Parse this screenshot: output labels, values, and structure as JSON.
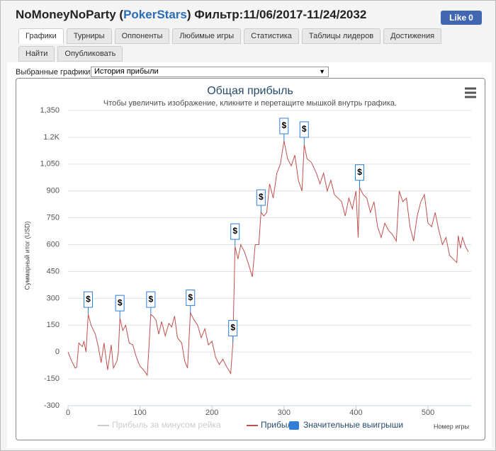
{
  "header": {
    "title_parts": [
      "NoMoneyNoParty (",
      "PokerStars",
      ") Фильтр:11/06/2017-11/24/2032"
    ],
    "like_button": {
      "label": "Like",
      "count": 0
    }
  },
  "tabs": [
    {
      "label": "Графики",
      "active": true
    },
    {
      "label": "Турниры"
    },
    {
      "label": "Оппоненты"
    },
    {
      "label": "Любимые игры"
    },
    {
      "label": "Статистика"
    },
    {
      "label": "Таблицы лидеров"
    },
    {
      "label": "Достижения"
    },
    {
      "label": "Найти"
    },
    {
      "label": "Опубликовать"
    }
  ],
  "chart_selector": {
    "label": "Выбранные графики:",
    "value": "История прибыли"
  },
  "chart_data": {
    "type": "line",
    "title": "Общая прибыль",
    "subtitle": "Чтобы увеличить изображение, кликните и перетащите мышкой внутрь графика.",
    "x_label": "Номер игры",
    "y_label": "Суммарный итог (USD)",
    "xlim": [
      0,
      560
    ],
    "xticks": [
      0,
      100,
      200,
      300,
      400,
      500
    ],
    "ylim": [
      -300,
      1350
    ],
    "yticks": [
      -300,
      -150,
      0,
      150,
      300,
      450,
      600,
      750,
      900,
      {
        "value": 1050,
        "label": "1,050"
      },
      {
        "value": 1200,
        "label": "1.2K"
      },
      {
        "value": 1350,
        "label": "1,350"
      }
    ],
    "grid": true,
    "series": [
      {
        "name": "Прибыль за минусом рейка",
        "color": "#cccccc",
        "visible": false
      },
      {
        "name": "Прибыль",
        "color": "#c0504d",
        "x": [
          0,
          5,
          10,
          12,
          15,
          20,
          22,
          25,
          28,
          32,
          38,
          42,
          46,
          50,
          55,
          60,
          63,
          68,
          70,
          72,
          76,
          80,
          85,
          90,
          95,
          100,
          105,
          110,
          112,
          115,
          118,
          122,
          126,
          130,
          135,
          140,
          144,
          148,
          152,
          158,
          162,
          166,
          170,
          175,
          180,
          185,
          190,
          195,
          200,
          205,
          210,
          215,
          220,
          226,
          229,
          232,
          236,
          240,
          245,
          250,
          256,
          260,
          265,
          268,
          272,
          276,
          280,
          285,
          290,
          295,
          300,
          305,
          310,
          315,
          320,
          325,
          328,
          332,
          338,
          345,
          350,
          355,
          360,
          365,
          370,
          375,
          380,
          385,
          390,
          395,
          400,
          403,
          405,
          410,
          415,
          420,
          425,
          430,
          435,
          440,
          445,
          450,
          456,
          460,
          465,
          470,
          475,
          480,
          485,
          490,
          495,
          500,
          505,
          510,
          515,
          520,
          525,
          530,
          535,
          540,
          542,
          545,
          548,
          552,
          556
        ],
        "values": [
          0,
          -50,
          -90,
          -85,
          50,
          30,
          60,
          0,
          210,
          150,
          100,
          30,
          -60,
          50,
          -100,
          40,
          -90,
          -50,
          0,
          190,
          120,
          150,
          50,
          40,
          -30,
          -80,
          -100,
          -130,
          0,
          210,
          200,
          180,
          100,
          170,
          90,
          160,
          140,
          200,
          80,
          50,
          -50,
          -90,
          220,
          180,
          150,
          80,
          130,
          40,
          60,
          -30,
          -70,
          -40,
          -80,
          -120,
          50,
          590,
          520,
          600,
          560,
          500,
          420,
          600,
          600,
          780,
          760,
          780,
          940,
          860,
          1000,
          1050,
          1180,
          1080,
          1040,
          1100,
          960,
          900,
          1160,
          1080,
          1060,
          1000,
          940,
          1000,
          900,
          960,
          880,
          860,
          840,
          760,
          860,
          800,
          900,
          640,
          920,
          880,
          860,
          780,
          840,
          700,
          640,
          720,
          680,
          660,
          620,
          900,
          840,
          860,
          700,
          620,
          760,
          840,
          880,
          720,
          700,
          780,
          680,
          600,
          640,
          540,
          520,
          500,
          650,
          580,
          640,
          590,
          560
        ]
      },
      {
        "name": "Значительные выигрыши",
        "color": "#2f7ed8",
        "flag_label": "$",
        "x": [
          28,
          72,
          115,
          170,
          229,
          232,
          268,
          300,
          328,
          405
        ],
        "values": [
          210,
          190,
          210,
          220,
          50,
          590,
          780,
          1180,
          1160,
          920
        ]
      }
    ]
  }
}
